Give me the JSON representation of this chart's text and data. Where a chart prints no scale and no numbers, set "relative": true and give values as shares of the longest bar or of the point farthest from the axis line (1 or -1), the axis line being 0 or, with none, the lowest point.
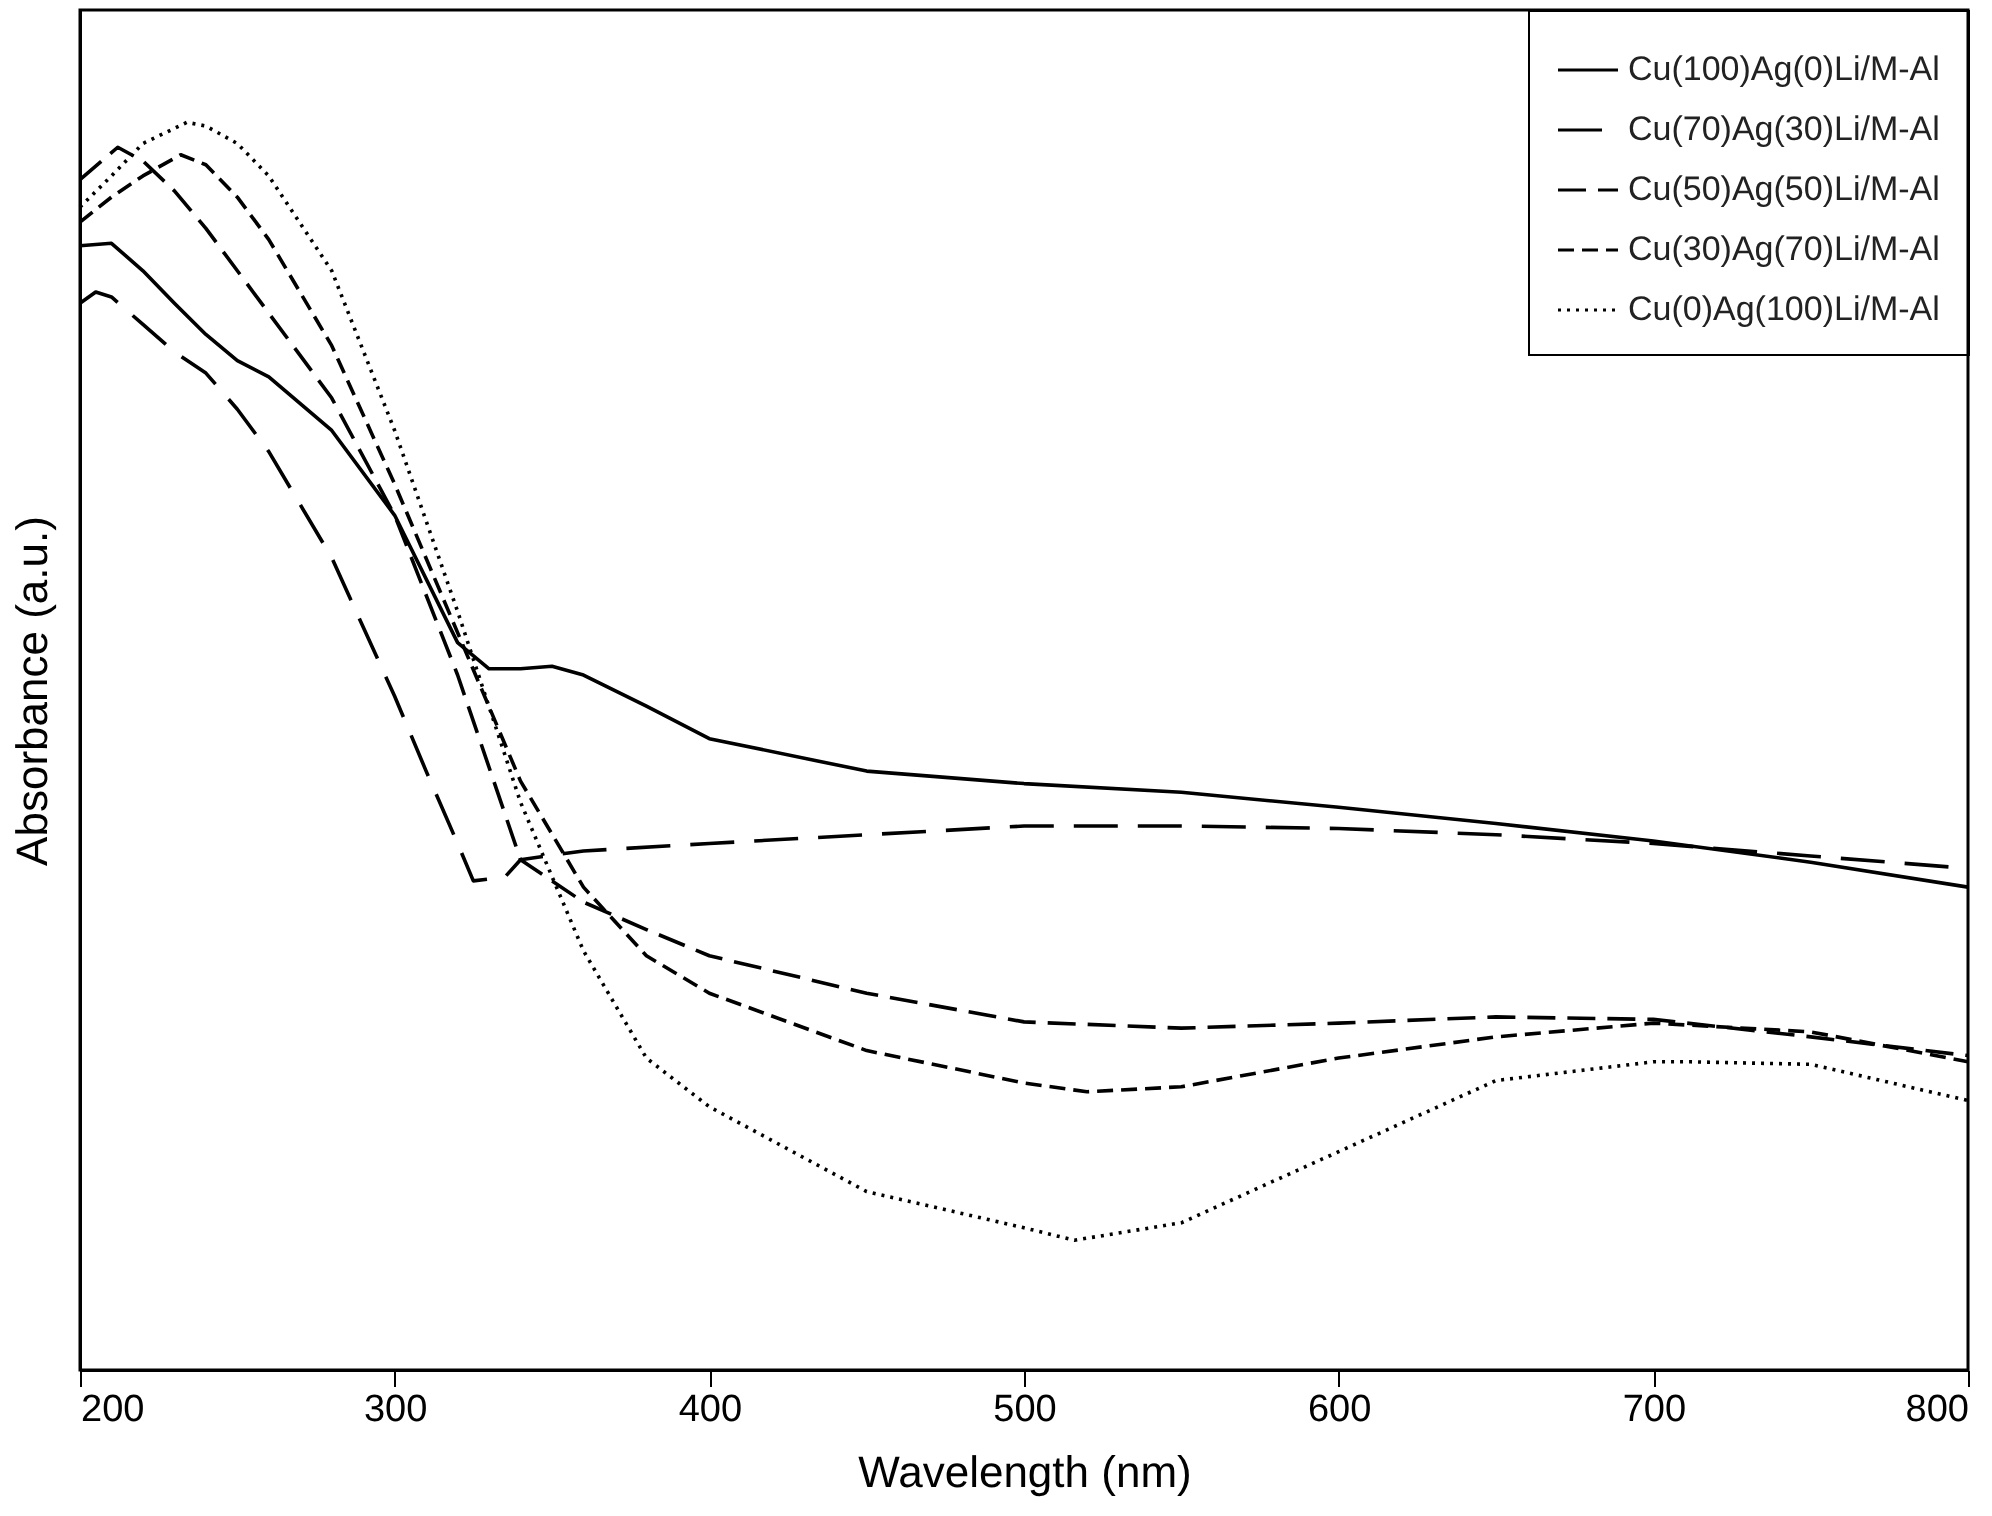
{
  "chart_data": {
    "type": "line",
    "relative": true,
    "xlabel": "Wavelength (nm)",
    "ylabel": "Absorbance (a.u.)",
    "xlim": [
      200,
      800
    ],
    "xticks": [
      200,
      300,
      400,
      500,
      600,
      700,
      800
    ],
    "grid": false,
    "legend": "top right",
    "marker": "none",
    "series": [
      {
        "name": "Cu(100)Ag(0)Li/M-Al",
        "color": "#000000",
        "line_style": "solid",
        "x": [
          200,
          210,
          220,
          230,
          240,
          250,
          260,
          280,
          300,
          320,
          330,
          340,
          350,
          360,
          380,
          400,
          450,
          500,
          550,
          600,
          650,
          700,
          750,
          800
        ],
        "values": [
          0.901,
          0.903,
          0.881,
          0.855,
          0.83,
          0.809,
          0.796,
          0.753,
          0.685,
          0.583,
          0.562,
          0.562,
          0.564,
          0.557,
          0.532,
          0.506,
          0.48,
          0.47,
          0.463,
          0.451,
          0.438,
          0.424,
          0.407,
          0.387
        ]
      },
      {
        "name": "Cu(70)Ag(30)Li/M-Al",
        "color": "#000000",
        "line_style": "dashed",
        "x": [
          200,
          205,
          210,
          220,
          230,
          240,
          250,
          260,
          280,
          300,
          310,
          320,
          325,
          335,
          340,
          360,
          400,
          450,
          500,
          550,
          600,
          650,
          700,
          750,
          800
        ],
        "values": [
          0.855,
          0.864,
          0.86,
          0.838,
          0.816,
          0.799,
          0.77,
          0.736,
          0.651,
          0.54,
          0.48,
          0.422,
          0.392,
          0.395,
          0.409,
          0.416,
          0.422,
          0.429,
          0.436,
          0.436,
          0.434,
          0.429,
          0.422,
          0.412,
          0.402
        ]
      },
      {
        "name": "Cu(50)Ag(50)Li/M-Al",
        "color": "#000000",
        "line_style": "dashed",
        "x": [
          200,
          212,
          220,
          230,
          240,
          250,
          260,
          280,
          300,
          320,
          340,
          360,
          380,
          400,
          450,
          500,
          550,
          600,
          650,
          700,
          750,
          800
        ],
        "values": [
          0.954,
          0.98,
          0.969,
          0.945,
          0.915,
          0.881,
          0.847,
          0.779,
          0.685,
          0.557,
          0.409,
          0.375,
          0.353,
          0.332,
          0.302,
          0.279,
          0.274,
          0.278,
          0.283,
          0.281,
          0.267,
          0.252
        ]
      },
      {
        "name": "Cu(30)Ag(70)Li/M-Al",
        "color": "#000000",
        "line_style": "dashed",
        "x": [
          200,
          210,
          220,
          232,
          240,
          250,
          260,
          280,
          300,
          320,
          340,
          360,
          380,
          400,
          450,
          500,
          520,
          550,
          600,
          650,
          700,
          750,
          800
        ],
        "values": [
          0.92,
          0.94,
          0.957,
          0.974,
          0.966,
          0.94,
          0.906,
          0.821,
          0.71,
          0.591,
          0.472,
          0.387,
          0.332,
          0.302,
          0.256,
          0.23,
          0.223,
          0.227,
          0.25,
          0.267,
          0.278,
          0.271,
          0.247
        ]
      },
      {
        "name": "Cu(0)Ag(100)Li/M-Al",
        "color": "#000000",
        "line_style": "dotted",
        "x": [
          200,
          210,
          220,
          234,
          240,
          250,
          260,
          280,
          300,
          320,
          340,
          360,
          380,
          400,
          450,
          500,
          516,
          550,
          600,
          650,
          700,
          712,
          750,
          800
        ],
        "values": [
          0.932,
          0.957,
          0.983,
          1,
          0.997,
          0.983,
          0.957,
          0.881,
          0.753,
          0.608,
          0.455,
          0.336,
          0.25,
          0.211,
          0.143,
          0.114,
          0.104,
          0.118,
          0.175,
          0.232,
          0.247,
          0.247,
          0.245,
          0.216
        ]
      }
    ]
  }
}
